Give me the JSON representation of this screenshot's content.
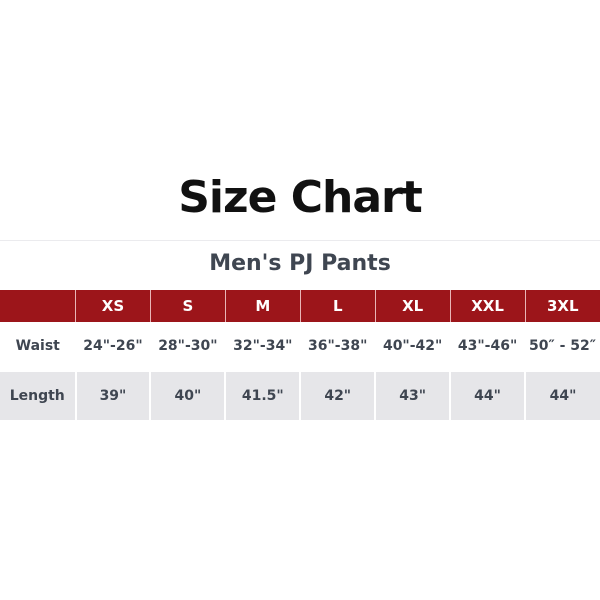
{
  "title": "Size Chart",
  "subtitle": "Men's PJ Pants",
  "colors": {
    "header_bg": "#9c151a",
    "text": "#3f4651",
    "alt_row_bg": "#e6e6e9"
  },
  "table": {
    "headers": [
      "",
      "XS",
      "S",
      "M",
      "L",
      "XL",
      "XXL",
      "3XL"
    ],
    "rows": [
      {
        "label": "Waist",
        "values": [
          "24\"-26\"",
          "28\"-30\"",
          "32\"-34\"",
          "36\"-38\"",
          "40\"-42\"",
          "43\"-46\"",
          "50″ - 52″"
        ]
      },
      {
        "label": "Length",
        "values": [
          "39\"",
          "40\"",
          "41.5\"",
          "42\"",
          "43\"",
          "44\"",
          "44\""
        ]
      }
    ]
  }
}
